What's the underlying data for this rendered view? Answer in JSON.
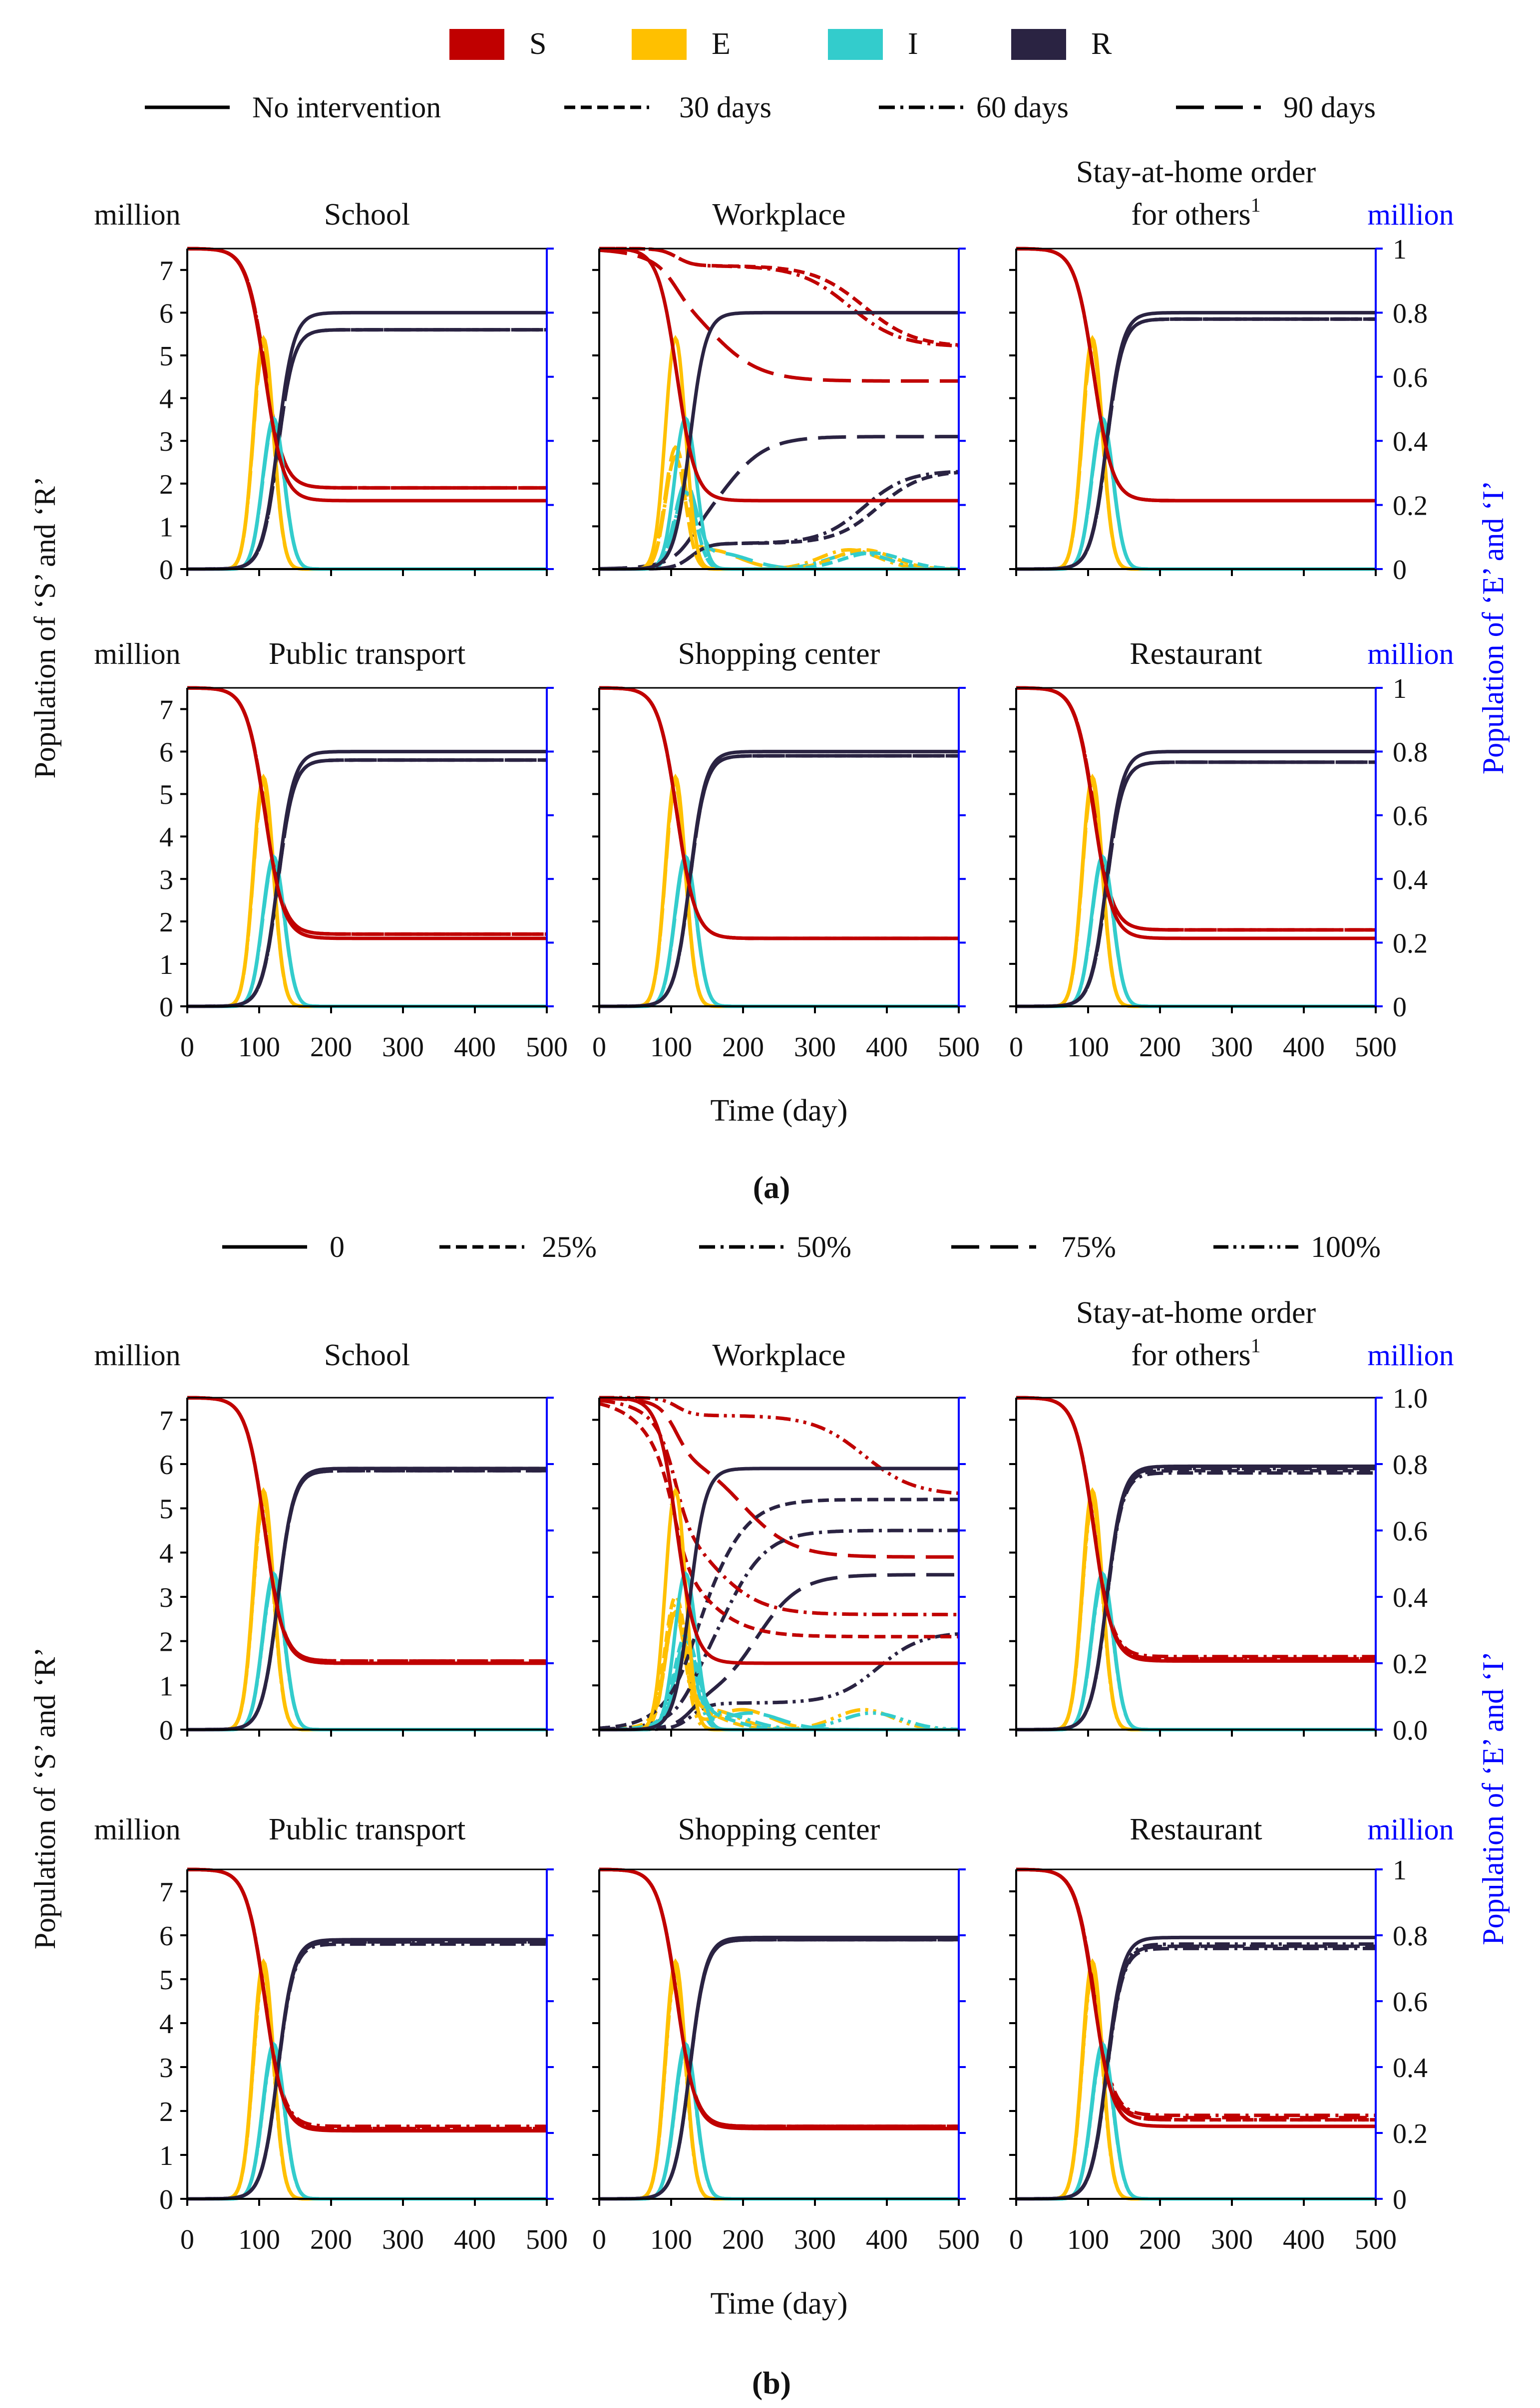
{
  "colors": {
    "S": "#c00000",
    "E": "#ffc000",
    "I": "#33cccc",
    "R": "#2a2342",
    "right_axis": "#0000ff",
    "axis": "#000000"
  },
  "compartments": [
    {
      "key": "S",
      "label": "S"
    },
    {
      "key": "E",
      "label": "E"
    },
    {
      "key": "I",
      "label": "I"
    },
    {
      "key": "R",
      "label": "R"
    }
  ],
  "y_label_left": "Population of ‘S’ and ‘R’",
  "y_label_right": "Population of ‘E’ and ‘I’",
  "x_label": "Time (day)",
  "unit_label": "million",
  "footnote_mark": "1",
  "chart_data": [
    {
      "type": "line",
      "panel_label": "(a)",
      "legend": [
        {
          "label": "No intervention",
          "dash": "solid"
        },
        {
          "label": "30 days",
          "dash": "short-dash"
        },
        {
          "label": "60 days",
          "dash": "dash-dot"
        },
        {
          "label": "90 days",
          "dash": "long-dash"
        }
      ],
      "x_ticks": [
        0,
        100,
        200,
        300,
        400,
        500
      ],
      "xlim": [
        0,
        500
      ],
      "left_ylim": [
        0,
        7.5
      ],
      "left_ticks": [
        "0",
        "1",
        "2",
        "3",
        "4",
        "5",
        "6",
        "7"
      ],
      "right_ylim": [
        0,
        1
      ],
      "right_ticks": [
        "0",
        "0.2",
        "0.4",
        "0.6",
        "0.8",
        "1"
      ],
      "subplots": [
        {
          "title": "School",
          "final_S": [
            1.6,
            1.9,
            1.9,
            1.9
          ],
          "final_R": [
            6.0,
            5.6,
            5.6,
            5.6
          ],
          "delays": [
            0,
            0,
            0,
            0
          ]
        },
        {
          "title": "Workplace",
          "final_S": [
            1.6,
            5.2,
            5.2,
            4.4
          ],
          "final_R": [
            6.0,
            2.3,
            2.3,
            3.1
          ],
          "delays": [
            0,
            260,
            240,
            45
          ]
        },
        {
          "title": "Stay-at-home order for others",
          "final_S": [
            1.6,
            1.6,
            1.6,
            1.6
          ],
          "final_R": [
            6.0,
            5.85,
            5.85,
            5.85
          ],
          "delays": [
            0,
            0,
            0,
            0
          ]
        },
        {
          "title": "Public transport",
          "final_S": [
            1.6,
            1.7,
            1.7,
            1.7
          ],
          "final_R": [
            6.0,
            5.8,
            5.8,
            5.8
          ],
          "delays": [
            0,
            0,
            0,
            0
          ]
        },
        {
          "title": "Shopping center",
          "final_S": [
            1.6,
            1.6,
            1.6,
            1.6
          ],
          "final_R": [
            6.0,
            5.9,
            5.9,
            5.9
          ],
          "delays": [
            0,
            0,
            0,
            0
          ]
        },
        {
          "title": "Restaurant",
          "final_S": [
            1.6,
            1.8,
            1.8,
            1.8
          ],
          "final_R": [
            6.0,
            5.75,
            5.75,
            5.75
          ],
          "delays": [
            0,
            0,
            0,
            0
          ]
        }
      ]
    },
    {
      "type": "line",
      "panel_label": "(b)",
      "legend": [
        {
          "label": "0",
          "dash": "solid"
        },
        {
          "label": "25%",
          "dash": "short-dash"
        },
        {
          "label": "50%",
          "dash": "dash-dot"
        },
        {
          "label": "75%",
          "dash": "long-dash"
        },
        {
          "label": "100%",
          "dash": "dash-dot-dot"
        }
      ],
      "x_ticks": [
        0,
        100,
        200,
        300,
        400,
        500
      ],
      "xlim": [
        0,
        500
      ],
      "left_ylim": [
        0,
        7.5
      ],
      "left_ticks": [
        "0",
        "1",
        "2",
        "3",
        "4",
        "5",
        "6",
        "7"
      ],
      "right_ylim": [
        0,
        1
      ],
      "right_ticks_first_row": [
        "0.0",
        "0.2",
        "0.4",
        "0.6",
        "0.8",
        "1.0"
      ],
      "right_ticks": [
        "0",
        "0.2",
        "0.4",
        "0.6",
        "0.8",
        "1"
      ],
      "subplots": [
        {
          "title": "School",
          "final_S": [
            1.5,
            1.5,
            1.55,
            1.55,
            1.55
          ],
          "final_R": [
            5.9,
            5.9,
            5.85,
            5.85,
            5.85
          ],
          "delays": [
            0,
            0,
            0,
            0,
            0
          ]
        },
        {
          "title": "Workplace",
          "final_S": [
            1.5,
            2.1,
            2.6,
            3.9,
            5.3
          ],
          "final_R": [
            5.9,
            5.2,
            4.5,
            3.5,
            2.2
          ],
          "delays": [
            0,
            20,
            45,
            90,
            260
          ]
        },
        {
          "title": "Stay-at-home order for others",
          "final_S": [
            1.55,
            1.6,
            1.65,
            1.6,
            1.6
          ],
          "final_R": [
            5.95,
            5.85,
            5.8,
            5.9,
            5.9
          ],
          "delays": [
            0,
            0,
            0,
            0,
            0
          ]
        },
        {
          "title": "Public transport",
          "final_S": [
            1.55,
            1.6,
            1.65,
            1.6,
            1.6
          ],
          "final_R": [
            5.9,
            5.85,
            5.8,
            5.85,
            5.85
          ],
          "delays": [
            0,
            0,
            0,
            0,
            0
          ]
        },
        {
          "title": "Shopping center",
          "final_S": [
            1.6,
            1.65,
            1.65,
            1.65,
            1.65
          ],
          "final_R": [
            5.95,
            5.9,
            5.9,
            5.9,
            5.9
          ],
          "delays": [
            0,
            0,
            0,
            0,
            0
          ]
        },
        {
          "title": "Restaurant",
          "final_S": [
            1.65,
            1.8,
            1.9,
            1.85,
            1.8
          ],
          "final_R": [
            5.95,
            5.75,
            5.7,
            5.75,
            5.8
          ],
          "delays": [
            0,
            0,
            0,
            0,
            0
          ]
        }
      ]
    }
  ]
}
